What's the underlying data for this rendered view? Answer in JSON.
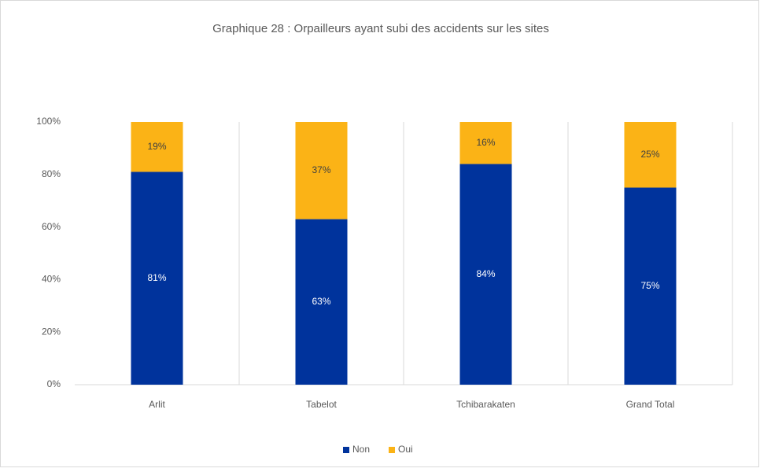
{
  "chart_data": {
    "type": "stacked_bar",
    "title": "Graphique 28 : Orpailleurs ayant subi des accidents sur les sites",
    "categories": [
      "Arlit",
      "Tabelot",
      "Tchibarakaten",
      "Grand Total"
    ],
    "series": [
      {
        "name": "Non",
        "color": "#00339c",
        "values": [
          81,
          63,
          84,
          75
        ],
        "value_labels": [
          "81%",
          "63%",
          "84%",
          "75%"
        ]
      },
      {
        "name": "Oui",
        "color": "#fbb316",
        "values": [
          19,
          37,
          16,
          25
        ],
        "value_labels": [
          "19%",
          "37%",
          "16%",
          "25%"
        ]
      }
    ],
    "ylim": [
      0,
      100
    ],
    "yticks": [
      {
        "value": 0,
        "label": "0%"
      },
      {
        "value": 20,
        "label": "20%"
      },
      {
        "value": 40,
        "label": "40%"
      },
      {
        "value": 60,
        "label": "60%"
      },
      {
        "value": 80,
        "label": "80%"
      },
      {
        "value": 100,
        "label": "100%"
      }
    ],
    "grid": false,
    "legend": "bottom"
  }
}
